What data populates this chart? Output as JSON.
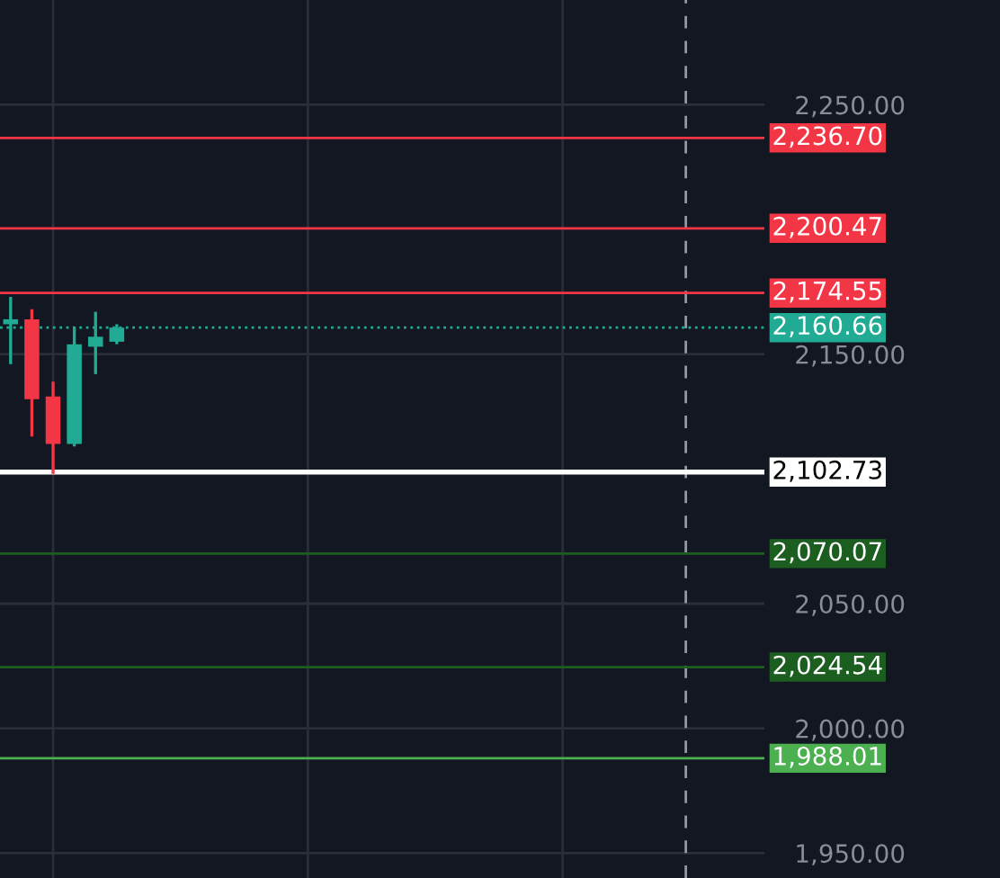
{
  "chart_data": {
    "type": "candlestick",
    "categories": [
      null,
      null,
      null,
      null,
      null,
      null,
      null,
      null,
      null,
      null,
      null,
      null,
      null,
      null,
      null,
      null,
      null,
      null,
      null,
      null,
      null,
      null,
      null,
      null,
      null,
      null,
      null,
      null,
      null,
      null,
      null,
      null,
      null,
      null,
      null,
      null
    ],
    "ohlc": [
      [
        2162,
        2173,
        2146,
        2164
      ],
      [
        2164,
        2168,
        2117,
        2132
      ],
      [
        2133,
        2139,
        2102,
        2114
      ],
      [
        2114,
        2161,
        2113,
        2154
      ],
      [
        2153,
        2167,
        2142,
        2157
      ],
      [
        2155,
        2162,
        2154,
        2160.66
      ],
      null,
      null,
      null,
      null,
      null,
      null,
      null,
      null,
      null,
      null,
      null,
      null,
      null,
      null,
      null,
      null,
      null,
      null,
      null,
      null,
      null,
      null,
      null,
      null,
      null,
      null,
      null,
      null,
      null,
      null
    ],
    "colors": [
      "#22ab94",
      "#f23645",
      "#f23645",
      "#22ab94",
      "#22ab94",
      "#22ab94",
      null,
      null,
      null,
      null,
      null,
      null,
      null,
      null,
      null,
      null,
      null,
      null,
      null,
      null,
      null,
      null,
      null,
      null,
      null,
      null,
      null,
      null,
      null,
      null,
      null,
      null,
      null,
      null,
      null,
      null
    ],
    "ylim": [
      1940,
      2292
    ],
    "yticks": [
      {
        "value": 2250,
        "label": "2,250.00"
      },
      {
        "value": 2150,
        "label": "2,150.00"
      },
      {
        "value": 2050,
        "label": "2,050.00"
      },
      {
        "value": 2000,
        "label": "2,000.00"
      },
      {
        "value": 1950,
        "label": "1,950.00"
      }
    ],
    "tick_labels": "y",
    "grid": true,
    "ref_lines": [
      {
        "axis": "y",
        "value": 2236.7,
        "label": "2,236.70",
        "color": "#f23645"
      },
      {
        "axis": "y",
        "value": 2200.47,
        "label": "2,200.47",
        "color": "#f23645"
      },
      {
        "axis": "y",
        "value": 2174.55,
        "label": "2,174.55",
        "color": "#f23645"
      },
      {
        "axis": "y",
        "value": 2160.66,
        "label": "2,160.66",
        "color": "#22ab94",
        "line_style": "dotted"
      },
      {
        "axis": "y",
        "value": 2102.73,
        "label": "2,102.73",
        "color": "#ffffff"
      },
      {
        "axis": "y",
        "value": 2070.07,
        "label": "2,070.07",
        "color": "#1b5e20"
      },
      {
        "axis": "y",
        "value": 2024.54,
        "label": "2,024.54",
        "color": "#1b5e20"
      },
      {
        "axis": "y",
        "value": 1988.01,
        "label": "1,988.01",
        "color": "#4caf50"
      }
    ]
  }
}
